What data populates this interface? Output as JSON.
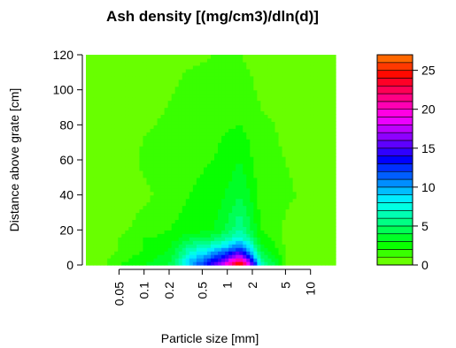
{
  "chart_data": {
    "type": "heatmap",
    "subtype": "filled-contour",
    "title": "Ash density [(mg/cm3)/dln(d)]",
    "xlabel": "Particle size [mm]",
    "ylabel": "Distance above grate [cm]",
    "x_scale": "log",
    "xlim": [
      0.02,
      20
    ],
    "ylim": [
      0,
      120
    ],
    "x_ticks": [
      {
        "value": 0.05,
        "label": "0.05"
      },
      {
        "value": 0.1,
        "label": "0.1"
      },
      {
        "value": 0.2,
        "label": "0.2"
      },
      {
        "value": 0.5,
        "label": "0.5"
      },
      {
        "value": 1,
        "label": "1"
      },
      {
        "value": 2,
        "label": "2"
      },
      {
        "value": 5,
        "label": "5"
      },
      {
        "value": 10,
        "label": "10"
      }
    ],
    "y_ticks": [
      {
        "value": 0,
        "label": "0"
      },
      {
        "value": 20,
        "label": "20"
      },
      {
        "value": 40,
        "label": "40"
      },
      {
        "value": 60,
        "label": "60"
      },
      {
        "value": 80,
        "label": "80"
      },
      {
        "value": 100,
        "label": "100"
      },
      {
        "value": 120,
        "label": "120"
      }
    ],
    "grid": false,
    "legend": {
      "placement": "right",
      "type": "color-bar",
      "min": 0,
      "max": 27,
      "level_step": 1,
      "ticks": [
        {
          "value": 0,
          "label": "0"
        },
        {
          "value": 5,
          "label": "5"
        },
        {
          "value": 10,
          "label": "10"
        },
        {
          "value": 15,
          "label": "15"
        },
        {
          "value": 20,
          "label": "20"
        },
        {
          "value": 25,
          "label": "25"
        }
      ]
    },
    "palette": "rainbow-reversed (green to orange)",
    "x": [
      0.03,
      0.05,
      0.1,
      0.2,
      0.35,
      0.7,
      1.4,
      2.5,
      5,
      10,
      17
    ],
    "y": [
      0,
      5,
      10,
      15,
      20,
      40,
      60,
      80,
      100,
      120
    ],
    "z": [
      [
        0.0,
        2.0,
        3.0,
        4.0,
        10.0,
        16.0,
        27.0,
        7.0,
        1.0,
        0.5,
        0.0
      ],
      [
        0.0,
        1.5,
        2.5,
        3.5,
        8.0,
        12.0,
        18.0,
        5.0,
        1.0,
        0.3,
        0.0
      ],
      [
        0.0,
        1.0,
        2.0,
        3.0,
        6.0,
        8.0,
        12.0,
        3.5,
        0.8,
        0.2,
        0.0
      ],
      [
        0.0,
        1.0,
        2.0,
        2.5,
        4.0,
        5.0,
        8.0,
        2.5,
        0.8,
        0.2,
        0.0
      ],
      [
        0.0,
        0.8,
        1.5,
        2.0,
        2.5,
        3.0,
        6.0,
        2.0,
        0.8,
        0.1,
        0.0
      ],
      [
        0.0,
        0.5,
        0.8,
        1.5,
        2.0,
        2.5,
        4.0,
        1.5,
        1.2,
        0.6,
        0.0
      ],
      [
        0.3,
        0.6,
        1.2,
        1.5,
        1.8,
        2.0,
        3.0,
        1.2,
        1.0,
        0.4,
        0.3
      ],
      [
        0.2,
        0.4,
        0.9,
        1.2,
        1.6,
        1.8,
        2.0,
        1.2,
        0.8,
        0.5,
        0.3
      ],
      [
        0.2,
        0.4,
        0.6,
        0.9,
        1.3,
        1.5,
        1.5,
        0.8,
        0.5,
        0.3,
        0.2
      ],
      [
        0.2,
        0.4,
        0.6,
        0.8,
        0.8,
        1.0,
        1.0,
        0.6,
        0.5,
        0.2,
        0.1
      ]
    ]
  }
}
